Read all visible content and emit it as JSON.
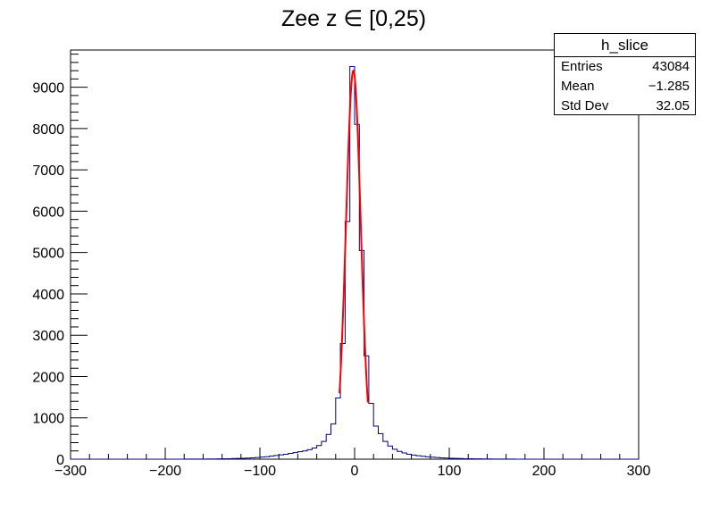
{
  "chart_data": {
    "type": "bar",
    "title": "Zee z ∈ [0,25)",
    "xlabel": "",
    "ylabel": "",
    "xlim": [
      -300,
      300
    ],
    "ylim": [
      0,
      9900
    ],
    "x_ticks": [
      -300,
      -200,
      -100,
      0,
      100,
      200,
      300
    ],
    "y_ticks": [
      0,
      1000,
      2000,
      3000,
      4000,
      5000,
      6000,
      7000,
      8000,
      9000
    ],
    "grid": false,
    "legend": "none",
    "histogram": {
      "name": "h_slice",
      "bin_width": 5,
      "x_start": -300,
      "values": [
        0,
        0,
        0,
        0,
        0,
        0,
        0,
        0,
        0,
        0,
        0,
        0,
        0,
        0,
        0,
        0,
        0,
        0,
        0,
        0,
        0,
        0,
        0,
        0,
        2,
        2,
        3,
        3,
        4,
        5,
        6,
        8,
        10,
        12,
        15,
        18,
        22,
        27,
        32,
        40,
        50,
        60,
        75,
        90,
        105,
        120,
        140,
        160,
        180,
        200,
        230,
        270,
        330,
        430,
        600,
        850,
        1480,
        2800,
        5750,
        9500,
        8100,
        5050,
        2500,
        1350,
        800,
        620,
        430,
        320,
        240,
        190,
        150,
        120,
        100,
        85,
        70,
        58,
        48,
        40,
        33,
        27,
        22,
        18,
        15,
        12,
        10,
        8,
        7,
        6,
        5,
        4,
        3,
        3,
        2,
        2,
        0,
        0,
        0,
        0,
        0,
        0,
        0,
        0,
        0,
        0,
        0,
        0,
        0,
        0,
        0,
        0,
        0,
        0,
        0,
        0,
        0,
        0,
        0,
        0,
        0,
        0
      ],
      "color": "#000080"
    },
    "fit": {
      "type": "gaussian",
      "amplitude": 9400,
      "mean": -1.3,
      "sigma": 7.8,
      "range": [
        -16,
        14
      ],
      "color": "#ff0000"
    }
  },
  "stats_box": {
    "title": "h_slice",
    "rows": [
      {
        "label": "Entries",
        "value": "43084"
      },
      {
        "label": "Mean",
        "value": "−1.285"
      },
      {
        "label": "Std Dev",
        "value": "32.05"
      }
    ]
  },
  "colors": {
    "axis": "#000000",
    "histogram": "#000080",
    "fit": "#ff0000"
  }
}
